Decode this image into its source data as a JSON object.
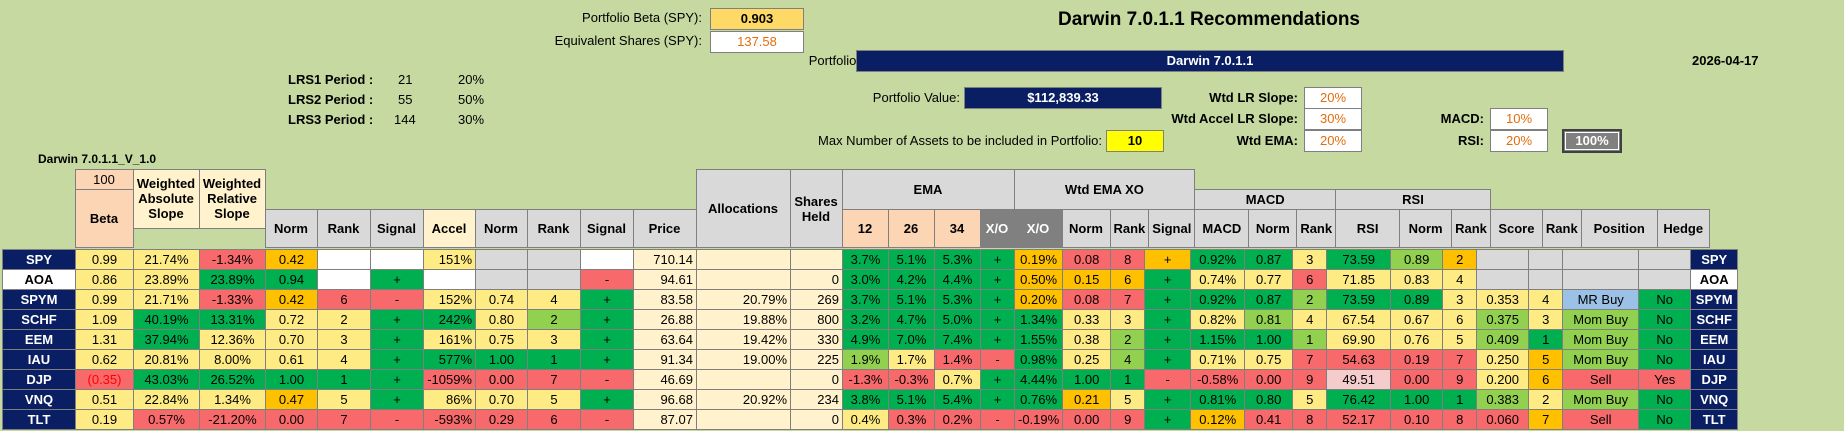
{
  "header": {
    "portfolio_beta_label": "Portfolio Beta (SPY):",
    "portfolio_beta_value": "0.903",
    "equiv_shares_label": "Equivalent Shares (SPY):",
    "equiv_shares_value": "137.58",
    "title": "Darwin 7.0.1.1 Recommendations",
    "portfolio_label": "Portfolio:",
    "portfolio_name": "Darwin 7.0.1.1",
    "date": "2026-04-17",
    "portfolio_value_label": "Portfolio Value:",
    "portfolio_value": "$112,839.33",
    "max_assets_label": "Max Number of Assets to be included in Portfolio:",
    "max_assets_value": "10",
    "version_label": "Darwin 7.0.1.1_V_1.0"
  },
  "lrs": [
    {
      "label": "LRS1 Period :",
      "period": "21",
      "weight": "20%"
    },
    {
      "label": "LRS2 Period :",
      "period": "55",
      "weight": "50%"
    },
    {
      "label": "LRS3 Period :",
      "period": "144",
      "weight": "30%"
    }
  ],
  "weights": {
    "wtd_lr_slope_label": "Wtd LR Slope:",
    "wtd_lr_slope": "20%",
    "wtd_accel_label": "Wtd Accel LR Slope:",
    "wtd_accel": "30%",
    "wtd_ema_label": "Wtd EMA:",
    "wtd_ema": "20%",
    "macd_label": "MACD:",
    "macd": "10%",
    "rsi_label": "RSI:",
    "rsi": "20%",
    "total": "100%"
  },
  "groups": {
    "hundred": "100",
    "weighted_absolute_slope": "Weighted Absolute Slope",
    "weighted_relative_slope": "Weighted Relative Slope",
    "allocations": "Allocations",
    "shares_held": "Shares Held",
    "ema": "EMA",
    "wtd_ema_xo": "Wtd EMA XO",
    "macd": "MACD",
    "rsi": "RSI"
  },
  "columns": {
    "beta": "Beta",
    "norm": "Norm",
    "rank": "Rank",
    "signal": "Signal",
    "accel": "Accel",
    "price": "Price",
    "e12": "12",
    "e26": "26",
    "e34": "34",
    "xo": "X/O",
    "macd": "MACD",
    "rsi": "RSI",
    "score": "Score",
    "position": "Position",
    "hedge": "Hedge"
  },
  "rows": [
    {
      "t": "SPY",
      "beta": "0.99",
      "was": "21.74%",
      "wrs": "-1.34%",
      "n1": "0.42",
      "r1": "",
      "s1": "",
      "acc": "151%",
      "n2": "",
      "r2": "",
      "s2": "",
      "price": "710.14",
      "alloc": "",
      "sh": "",
      "e12": "3.7%",
      "e26": "5.1%",
      "e34": "5.3%",
      "xo": "+",
      "wx": "0.19%",
      "n3": "0.08",
      "r3": "8",
      "s3": "+",
      "macd": "0.92%",
      "n4": "0.87",
      "r4": "3",
      "rsi": "73.59",
      "n5": "0.89",
      "r5": "2",
      "score": "",
      "r6": "",
      "pos": "",
      "hedge": ""
    },
    {
      "t": "AOA",
      "beta": "0.86",
      "was": "23.89%",
      "wrs": "23.89%",
      "n1": "0.94",
      "r1": "",
      "s1": "+",
      "acc": "",
      "n2": "",
      "r2": "",
      "s2": "-",
      "price": "94.61",
      "alloc": "",
      "sh": "0",
      "e12": "3.0%",
      "e26": "4.2%",
      "e34": "4.4%",
      "xo": "+",
      "wx": "0.50%",
      "n3": "0.15",
      "r3": "6",
      "s3": "+",
      "macd": "0.74%",
      "n4": "0.77",
      "r4": "6",
      "rsi": "71.85",
      "n5": "0.83",
      "r5": "4",
      "score": "",
      "r6": "",
      "pos": "",
      "hedge": ""
    },
    {
      "t": "SPYM",
      "beta": "0.99",
      "was": "21.71%",
      "wrs": "-1.33%",
      "n1": "0.42",
      "r1": "6",
      "s1": "-",
      "acc": "152%",
      "n2": "0.74",
      "r2": "4",
      "s2": "+",
      "price": "83.58",
      "alloc": "20.79%",
      "sh": "269",
      "e12": "3.7%",
      "e26": "5.1%",
      "e34": "5.3%",
      "xo": "+",
      "wx": "0.20%",
      "n3": "0.08",
      "r3": "7",
      "s3": "+",
      "macd": "0.92%",
      "n4": "0.87",
      "r4": "2",
      "rsi": "73.59",
      "n5": "0.89",
      "r5": "3",
      "score": "0.353",
      "r6": "4",
      "pos": "MR Buy",
      "hedge": "No"
    },
    {
      "t": "SCHF",
      "beta": "1.09",
      "was": "40.19%",
      "wrs": "13.31%",
      "n1": "0.72",
      "r1": "2",
      "s1": "+",
      "acc": "242%",
      "n2": "0.80",
      "r2": "2",
      "s2": "+",
      "price": "26.88",
      "alloc": "19.88%",
      "sh": "800",
      "e12": "3.2%",
      "e26": "4.7%",
      "e34": "5.0%",
      "xo": "+",
      "wx": "1.34%",
      "n3": "0.33",
      "r3": "3",
      "s3": "+",
      "macd": "0.82%",
      "n4": "0.81",
      "r4": "4",
      "rsi": "67.54",
      "n5": "0.67",
      "r5": "6",
      "score": "0.375",
      "r6": "3",
      "pos": "Mom Buy",
      "hedge": "No"
    },
    {
      "t": "EEM",
      "beta": "1.31",
      "was": "37.94%",
      "wrs": "12.36%",
      "n1": "0.70",
      "r1": "3",
      "s1": "+",
      "acc": "161%",
      "n2": "0.75",
      "r2": "3",
      "s2": "+",
      "price": "63.64",
      "alloc": "19.42%",
      "sh": "330",
      "e12": "4.9%",
      "e26": "7.0%",
      "e34": "7.4%",
      "xo": "+",
      "wx": "1.55%",
      "n3": "0.38",
      "r3": "2",
      "s3": "+",
      "macd": "1.15%",
      "n4": "1.00",
      "r4": "1",
      "rsi": "69.90",
      "n5": "0.76",
      "r5": "5",
      "score": "0.409",
      "r6": "1",
      "pos": "Mom Buy",
      "hedge": "No"
    },
    {
      "t": "IAU",
      "beta": "0.62",
      "was": "20.81%",
      "wrs": "8.00%",
      "n1": "0.61",
      "r1": "4",
      "s1": "+",
      "acc": "577%",
      "n2": "1.00",
      "r2": "1",
      "s2": "+",
      "price": "91.34",
      "alloc": "19.00%",
      "sh": "225",
      "e12": "1.9%",
      "e26": "1.7%",
      "e34": "1.4%",
      "xo": "-",
      "wx": "0.98%",
      "n3": "0.25",
      "r3": "4",
      "s3": "+",
      "macd": "0.71%",
      "n4": "0.75",
      "r4": "7",
      "rsi": "54.63",
      "n5": "0.19",
      "r5": "7",
      "score": "0.250",
      "r6": "5",
      "pos": "Mom Buy",
      "hedge": "No"
    },
    {
      "t": "DJP",
      "beta": "(0.35)",
      "was": "43.03%",
      "wrs": "26.52%",
      "n1": "1.00",
      "r1": "1",
      "s1": "+",
      "acc": "-1059%",
      "n2": "0.00",
      "r2": "7",
      "s2": "-",
      "price": "46.69",
      "alloc": "",
      "sh": "0",
      "e12": "-1.3%",
      "e26": "-0.3%",
      "e34": "0.7%",
      "xo": "+",
      "wx": "4.44%",
      "n3": "1.00",
      "r3": "1",
      "s3": "-",
      "macd": "-0.58%",
      "n4": "0.00",
      "r4": "9",
      "rsi": "49.51",
      "n5": "0.00",
      "r5": "9",
      "score": "0.200",
      "r6": "6",
      "pos": "Sell",
      "hedge": "Yes"
    },
    {
      "t": "VNQ",
      "beta": "0.51",
      "was": "22.84%",
      "wrs": "1.34%",
      "n1": "0.47",
      "r1": "5",
      "s1": "+",
      "acc": "86%",
      "n2": "0.70",
      "r2": "5",
      "s2": "+",
      "price": "96.68",
      "alloc": "20.92%",
      "sh": "234",
      "e12": "3.8%",
      "e26": "5.1%",
      "e34": "5.4%",
      "xo": "+",
      "wx": "0.76%",
      "n3": "0.21",
      "r3": "5",
      "s3": "+",
      "macd": "0.81%",
      "n4": "0.80",
      "r4": "5",
      "rsi": "76.42",
      "n5": "1.00",
      "r5": "1",
      "score": "0.383",
      "r6": "2",
      "pos": "Mom Buy",
      "hedge": "No"
    },
    {
      "t": "TLT",
      "beta": "0.19",
      "was": "0.57%",
      "wrs": "-21.20%",
      "n1": "0.00",
      "r1": "7",
      "s1": "-",
      "acc": "-593%",
      "n2": "0.29",
      "r2": "6",
      "s2": "-",
      "price": "87.07",
      "alloc": "",
      "sh": "0",
      "e12": "0.4%",
      "e26": "0.3%",
      "e34": "0.2%",
      "xo": "-",
      "wx": "-0.19%",
      "n3": "0.00",
      "r3": "9",
      "s3": "+",
      "macd": "0.12%",
      "n4": "0.41",
      "r4": "8",
      "rsi": "52.17",
      "n5": "0.10",
      "r5": "8",
      "score": "0.060",
      "r6": "7",
      "pos": "Sell",
      "hedge": "No"
    }
  ]
}
